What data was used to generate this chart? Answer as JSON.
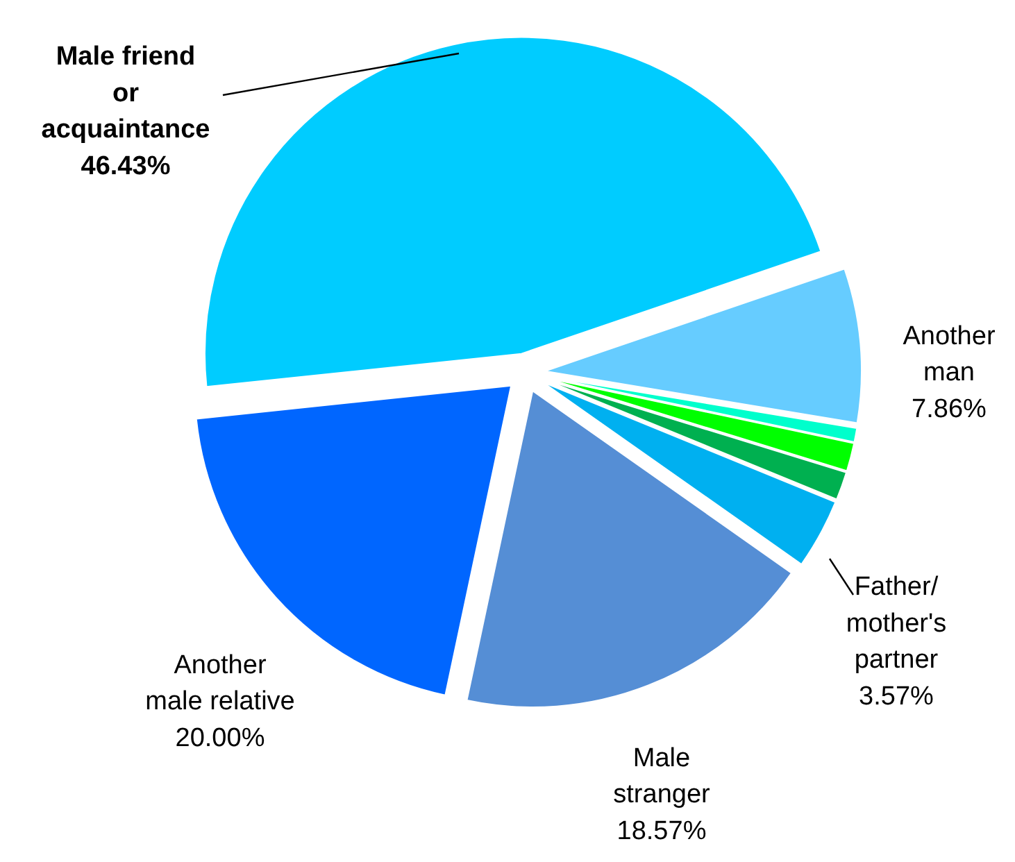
{
  "chart_data": {
    "type": "pie",
    "categories": [
      "Male friend\nor\nacquaintance",
      "Another\nman",
      null,
      null,
      null,
      "Father/\nmother's\npartner",
      "Male\nstranger",
      "Another\nmale relative"
    ],
    "values": [
      46.43,
      7.86,
      0.71,
      1.43,
      1.43,
      3.57,
      18.57,
      20.0
    ],
    "colors": [
      "#00ccff",
      "#66ccff",
      "#00ffcc",
      "#00ff00",
      "#00b050",
      "#00b0f0",
      "#558ed5",
      "#0066ff"
    ],
    "value_labels": [
      "46.43%",
      "7.86%",
      null,
      null,
      null,
      "3.57%",
      "18.57%",
      "20.00%"
    ]
  }
}
